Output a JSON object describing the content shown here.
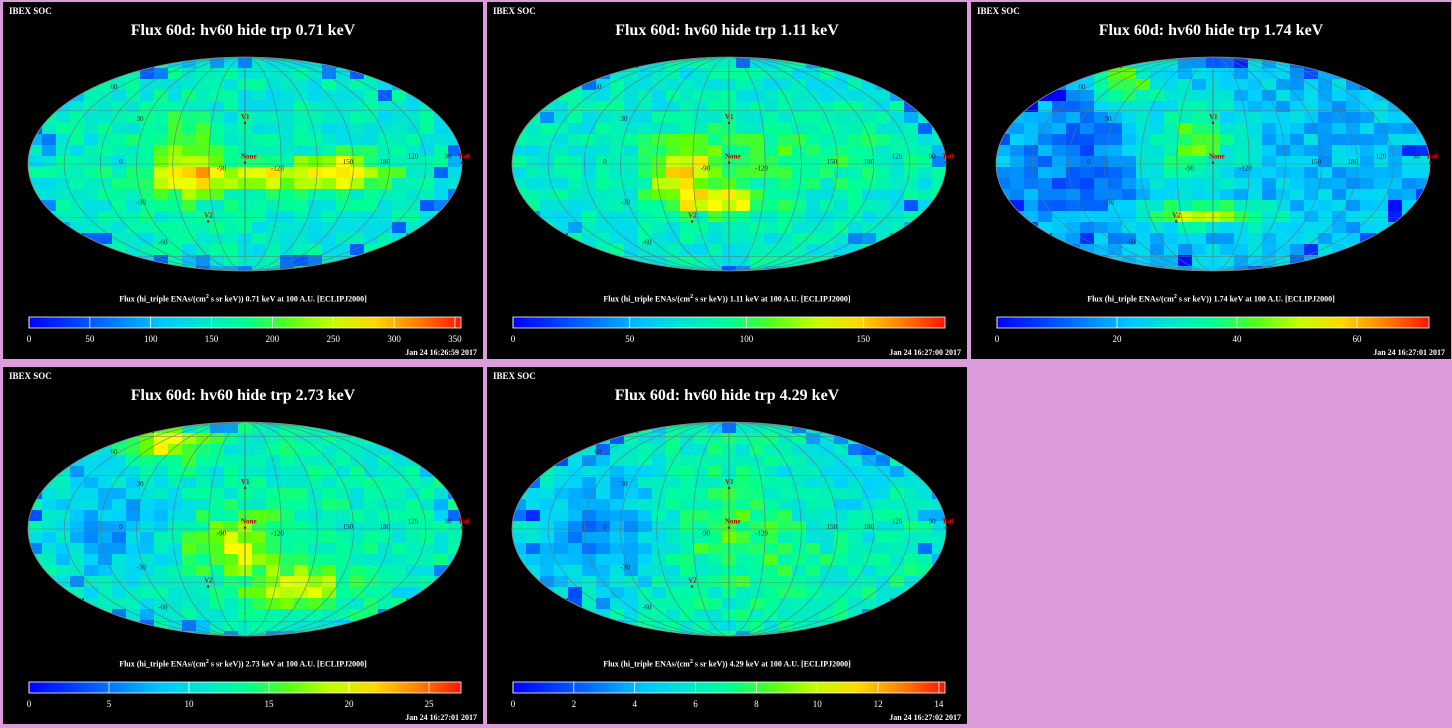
{
  "header": {
    "soc_label": "IBEX SOC"
  },
  "colorbar_label_template": {
    "prefix": "Flux (hi_triple ENAs/(cm",
    "sup": "2",
    "middle": " s sr keV)) ",
    "suffix": " at 100 A.U. [ECLIPJ2000]"
  },
  "map_labels": {
    "markers": [
      "V1",
      "None",
      "V2",
      "Tail"
    ],
    "grid_numbers": [
      "60",
      "30",
      "0",
      "-30",
      "-60",
      "-90",
      "-120",
      "150",
      "180",
      "120",
      "90"
    ]
  },
  "colors": {
    "background": "#dc9cdc",
    "panel": "#000000",
    "marker": "#c00000"
  },
  "chart_data": [
    {
      "type": "heatmap",
      "title": "Flux 60d: hv60 hide trp 0.71 keV",
      "energy": "0.71 keV",
      "timestamp": "Jan 24 16:26:59 2017",
      "colorbar": {
        "range": [
          0,
          355
        ],
        "ticks": [
          0,
          50,
          100,
          150,
          200,
          250,
          300,
          350
        ]
      },
      "bright_regions": [
        "ribbon",
        "nose"
      ]
    },
    {
      "type": "heatmap",
      "title": "Flux 60d: hv60 hide trp 1.11 keV",
      "energy": "1.11 keV",
      "timestamp": "Jan 24 16:27:00 2017",
      "colorbar": {
        "range": [
          0,
          185
        ],
        "ticks": [
          0,
          50,
          100,
          150
        ]
      },
      "bright_regions": [
        "ribbon",
        "nose"
      ]
    },
    {
      "type": "heatmap",
      "title": "Flux 60d: hv60 hide trp 1.74 keV",
      "energy": "1.74 keV",
      "timestamp": "Jan 24 16:27:01 2017",
      "colorbar": {
        "range": [
          0,
          72
        ],
        "ticks": [
          0,
          20,
          40,
          60
        ]
      },
      "bright_regions": [
        "ribbon",
        "southern arc"
      ]
    },
    {
      "type": "heatmap",
      "title": "Flux 60d: hv60 hide trp 2.73 keV",
      "energy": "2.73 keV",
      "timestamp": "Jan 24 16:27:01 2017",
      "colorbar": {
        "range": [
          0,
          27
        ],
        "ticks": [
          0,
          5,
          10,
          15,
          20,
          25
        ]
      },
      "bright_regions": [
        "north",
        "nose",
        "south"
      ]
    },
    {
      "type": "heatmap",
      "title": "Flux 60d: hv60 hide trp 4.29 keV",
      "energy": "4.29 keV",
      "timestamp": "Jan 24 16:27:02 2017",
      "colorbar": {
        "range": [
          0,
          14.2
        ],
        "ticks": [
          0,
          2,
          4,
          6,
          8,
          10,
          12,
          14
        ]
      },
      "bright_regions": [
        "nose"
      ]
    }
  ]
}
